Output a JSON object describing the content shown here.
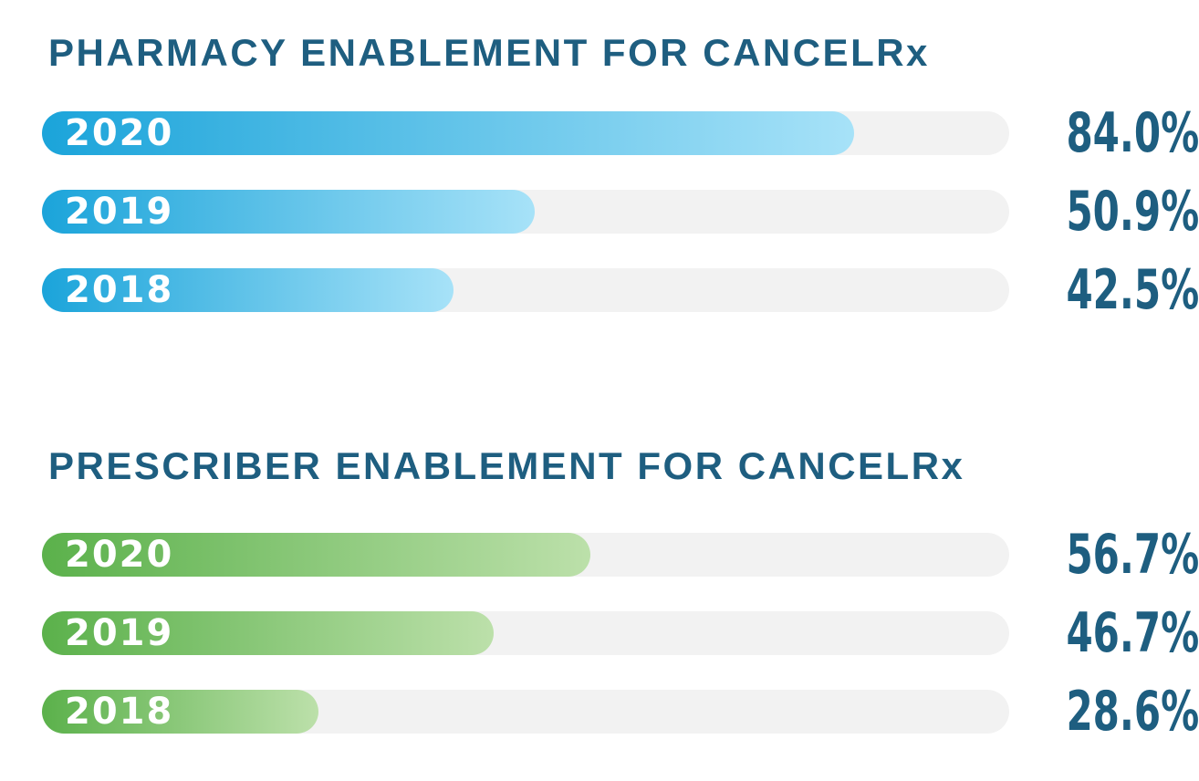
{
  "colors": {
    "title_text": "#1e5e80",
    "percent_text": "#1e5e80",
    "year_text": "#ffffff",
    "track_background": "#f2f2f2",
    "blue_gradient_start": "#1ba4da",
    "blue_gradient_end": "#a7e2f8",
    "green_gradient_start": "#5bb14b",
    "green_gradient_end": "#bce0aa"
  },
  "chart_data": [
    {
      "type": "bar",
      "orientation": "horizontal",
      "title": "PHARMACY ENABLEMENT FOR CANCELRx",
      "categories": [
        "2020",
        "2019",
        "2018"
      ],
      "values": [
        84.0,
        50.9,
        42.5
      ],
      "value_labels": [
        "84.0%",
        "50.9%",
        "42.5%"
      ],
      "xlim": [
        0,
        100
      ],
      "grid": "off",
      "legend": "none",
      "bar_color_gradient": [
        "#1ba4da",
        "#a7e2f8"
      ]
    },
    {
      "type": "bar",
      "orientation": "horizontal",
      "title": "PRESCRIBER ENABLEMENT FOR CANCELRx",
      "categories": [
        "2020",
        "2019",
        "2018"
      ],
      "values": [
        56.7,
        46.7,
        28.6
      ],
      "value_labels": [
        "56.7%",
        "46.7%",
        "28.6%"
      ],
      "xlim": [
        0,
        100
      ],
      "grid": "off",
      "legend": "none",
      "bar_color_gradient": [
        "#5bb14b",
        "#bce0aa"
      ]
    }
  ]
}
